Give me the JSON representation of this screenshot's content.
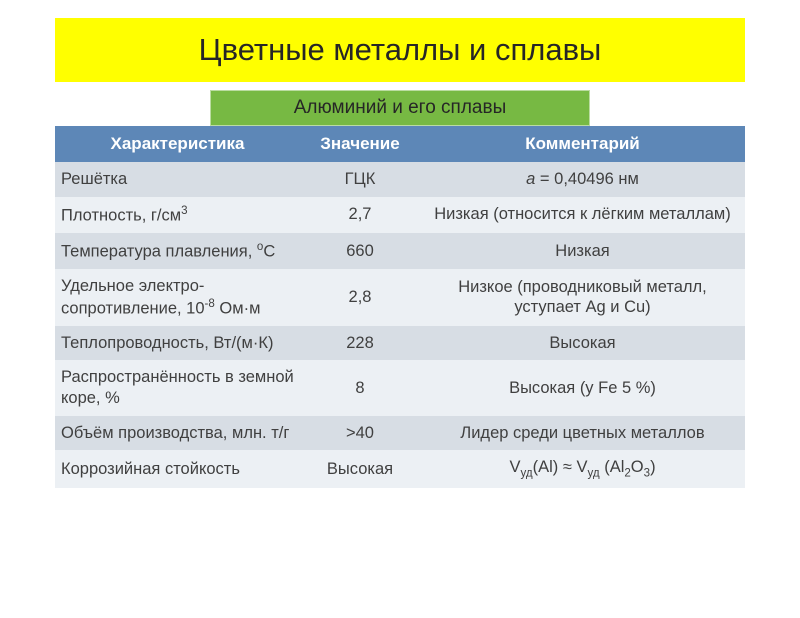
{
  "title": {
    "text": "Цветные металлы и сплавы",
    "bg": "#ffff00",
    "color": "#262626"
  },
  "subtitle": {
    "text": "Алюминий  и его сплавы",
    "bg": "#77b943",
    "color": "#262626"
  },
  "table": {
    "header_bg": "#5d87b7",
    "header_color": "#ffffff",
    "row_odd_bg": "#d7dde4",
    "row_even_bg": "#ecf0f4",
    "text_color": "#404040",
    "columns": [
      "Характеристика",
      "Значение",
      "Комментарий"
    ],
    "rows": [
      {
        "char": "Решётка",
        "val": "ГЦК",
        "com_html": "<span class='ital'>a</span> = 0,40496 нм"
      },
      {
        "char_html": "Плотность, г/см<span class='sup'>3</span>",
        "val": "2,7",
        "com": "Низкая (относится к лёгким металлам)"
      },
      {
        "char_html": "Температура плавления, <span class='sup'>о</span>С",
        "val": "660",
        "com": "Низкая"
      },
      {
        "char_html": "Удельное электро-сопротивление, 10<span class='sup'>-8</span> Ом·м",
        "val": "2,8",
        "com": "Низкое (проводниковый металл, уступает Ag и Cu)"
      },
      {
        "char": "Теплопроводность, Вт/(м·К)",
        "val": "228",
        "com": "Высокая"
      },
      {
        "char": "Распространённость в земной коре, %",
        "val": "8",
        "com": "Высокая (у Fe 5 %)"
      },
      {
        "char": "Объём производства, млн. т/г",
        "val": ">40",
        "com": "Лидер среди цветных металлов"
      },
      {
        "char": "Коррозийная стойкость",
        "val": "Высокая",
        "com_html": "V<span class='sub'>уд</span>(Al) ≈ V<span class='sub'>уд</span> (Al<span class='sub'>2</span>O<span class='sub'>3</span>)"
      }
    ]
  }
}
